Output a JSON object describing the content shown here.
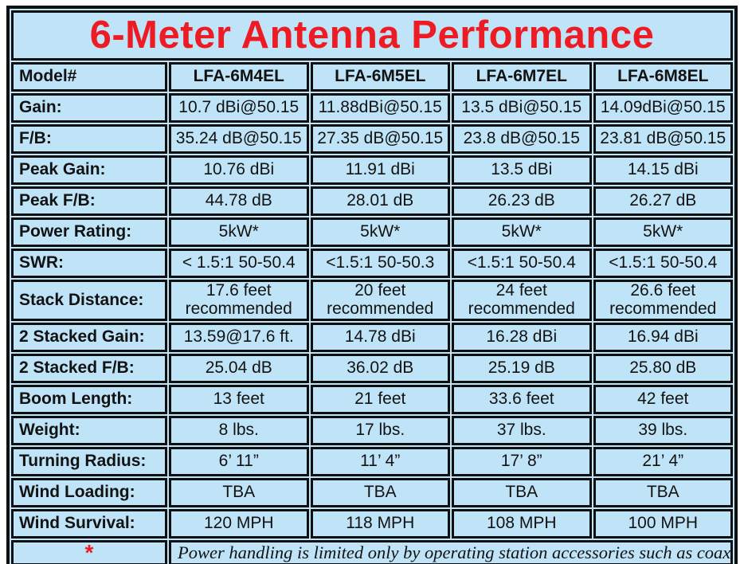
{
  "title": "6-Meter Antenna Performance",
  "colors": {
    "background_blue": "#bfe4f8",
    "border_black": "#101010",
    "title_red": "#ed1c24",
    "text_black": "#121212"
  },
  "table": {
    "header": {
      "label": "Model#",
      "models": [
        "LFA-6M4EL",
        "LFA-6M5EL",
        "LFA-6M7EL",
        "LFA-6M8EL"
      ]
    },
    "rows": [
      {
        "label": "Gain:",
        "values": [
          "10.7 dBi@50.15",
          "11.88dBi@50.15",
          "13.5 dBi@50.15",
          "14.09dBi@50.15"
        ]
      },
      {
        "label": "F/B:",
        "values": [
          "35.24 dB@50.15",
          "27.35 dB@50.15",
          "23.8 dB@50.15",
          "23.81 dB@50.15"
        ]
      },
      {
        "label": "Peak Gain:",
        "values": [
          "10.76 dBi",
          "11.91 dBi",
          "13.5 dBi",
          "14.15 dBi"
        ]
      },
      {
        "label": "Peak F/B:",
        "values": [
          "44.78 dB",
          "28.01 dB",
          "26.23 dB",
          "26.27 dB"
        ]
      },
      {
        "label": "Power Rating:",
        "values": [
          "5kW*",
          "5kW*",
          "5kW*",
          "5kW*"
        ]
      },
      {
        "label": "SWR:",
        "values": [
          "< 1.5:1 50-50.4",
          "<1.5:1 50-50.3",
          "<1.5:1 50-50.4",
          "<1.5:1 50-50.4"
        ]
      },
      {
        "label": "Stack Distance:",
        "tall": true,
        "values": [
          "17.6 feet\nrecommended",
          "20 feet\nrecommended",
          "24 feet\nrecommended",
          "26.6 feet\nrecommended"
        ]
      },
      {
        "label": "2 Stacked Gain:",
        "values": [
          "13.59@17.6 ft.",
          "14.78 dBi",
          "16.28 dBi",
          "16.94 dBi"
        ]
      },
      {
        "label": "2 Stacked F/B:",
        "values": [
          "25.04 dB",
          "36.02 dB",
          "25.19 dB",
          "25.80 dB"
        ]
      },
      {
        "label": "Boom Length:",
        "values": [
          "13 feet",
          "21 feet",
          "33.6 feet",
          "42 feet"
        ]
      },
      {
        "label": "Weight:",
        "values": [
          "8 lbs.",
          "17 lbs.",
          "37 lbs.",
          "39 lbs."
        ]
      },
      {
        "label": "Turning Radius:",
        "values": [
          "6’ 11”",
          "11’ 4”",
          "17’ 8”",
          "21’ 4”"
        ]
      },
      {
        "label": "Wind Loading:",
        "values": [
          "TBA",
          "TBA",
          "TBA",
          "TBA"
        ]
      },
      {
        "label": "Wind Survival:",
        "values": [
          "120 MPH",
          "118 MPH",
          "108 MPH",
          "100 MPH"
        ]
      }
    ],
    "footnote": {
      "marker": "*",
      "text": "Power handling is limited only by operating station accessories such as coax."
    }
  }
}
